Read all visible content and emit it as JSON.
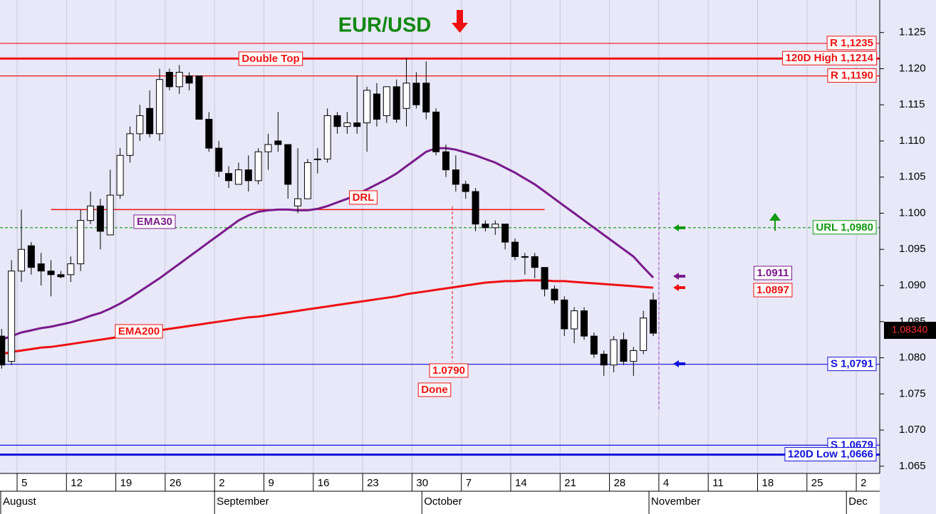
{
  "chart_data": {
    "type": "candlestick",
    "title": "EUR/USD",
    "ylim": [
      1.064,
      1.1295
    ],
    "yticks": [
      1.065,
      {
        "value": 1.07,
        "label": "1.070"
      },
      1.075,
      {
        "value": 1.08,
        "label": "1.080"
      },
      1.085,
      {
        "value": 1.09,
        "label": "1.090"
      },
      1.095,
      {
        "value": 1.1,
        "label": "1.100"
      },
      1.105,
      {
        "value": 1.11,
        "label": "1.110"
      },
      1.115,
      {
        "value": 1.12,
        "label": "1.120"
      },
      1.125
    ],
    "categories": [
      null,
      null,
      "5",
      null,
      null,
      null,
      null,
      "12",
      null,
      null,
      null,
      null,
      "19",
      null,
      null,
      null,
      null,
      "26",
      null,
      null,
      null,
      null,
      "2",
      null,
      null,
      null,
      null,
      "9",
      null,
      null,
      null,
      null,
      "16",
      null,
      null,
      null,
      null,
      "23",
      null,
      null,
      null,
      null,
      "30",
      null,
      null,
      null,
      null,
      "7",
      null,
      null,
      null,
      null,
      "14",
      null,
      null,
      null,
      null,
      "21",
      null,
      null,
      null,
      null,
      "28",
      null,
      null,
      null,
      null,
      "4",
      null,
      null,
      null,
      null,
      "11",
      null,
      null,
      null,
      null,
      "18",
      null,
      null,
      null,
      null,
      "25",
      null,
      null,
      null,
      null,
      "2",
      null
    ],
    "months": [
      "August",
      null,
      null,
      null,
      null,
      null,
      null,
      null,
      null,
      null,
      null,
      null,
      null,
      null,
      null,
      null,
      null,
      null,
      null,
      null,
      null,
      null,
      "September",
      null,
      null,
      null,
      null,
      null,
      null,
      null,
      null,
      null,
      null,
      null,
      null,
      null,
      null,
      null,
      null,
      null,
      null,
      null,
      null,
      "October",
      null,
      null,
      null,
      null,
      null,
      null,
      null,
      null,
      null,
      null,
      null,
      null,
      null,
      null,
      null,
      null,
      null,
      null,
      null,
      null,
      null,
      null,
      "November",
      null,
      null,
      null,
      null,
      null,
      null,
      null,
      null,
      null,
      null,
      null,
      null,
      null,
      null,
      null,
      null,
      null,
      null,
      null,
      "Dec",
      null
    ],
    "open": [
      1.083,
      1.0795,
      1.092,
      1.0955,
      1.093,
      1.092,
      1.0915,
      1.0915,
      1.093,
      1.099,
      1.101,
      1.097,
      1.1025,
      1.108,
      1.111,
      1.1145,
      1.111,
      1.1195,
      1.1175,
      1.119,
      1.119,
      1.113,
      1.109,
      1.1055,
      1.104,
      1.106,
      1.1045,
      1.1085,
      1.11,
      1.1095,
      1.101,
      1.102,
      1.1075,
      1.1075,
      1.1135,
      1.112,
      1.1125,
      1.1125,
      1.1165,
      1.1135,
      1.1175,
      1.1145,
      1.118,
      1.118,
      1.114,
      1.1085,
      1.106,
      1.104,
      1.103,
      1.0985,
      1.098,
      1.0985,
      1.096,
      1.094,
      1.094,
      1.0925,
      1.0895,
      1.088,
      1.084,
      1.0865,
      1.083,
      1.0805,
      1.079,
      1.0825,
      1.0795,
      1.081,
      1.088,
      null,
      null,
      null,
      null,
      null,
      null,
      null,
      null,
      null,
      null,
      null,
      null,
      null,
      null,
      null,
      null,
      null,
      null,
      null,
      null,
      null,
      null
    ],
    "high": [
      1.084,
      1.0935,
      1.1005,
      1.096,
      1.0945,
      1.0935,
      1.092,
      1.094,
      1.1005,
      1.103,
      1.102,
      1.106,
      1.109,
      1.112,
      1.115,
      1.117,
      1.12,
      1.12,
      1.1205,
      1.1195,
      1.119,
      1.114,
      1.11,
      1.1065,
      1.107,
      1.108,
      1.109,
      1.111,
      1.114,
      1.1095,
      1.109,
      1.1075,
      1.109,
      1.1145,
      1.114,
      1.114,
      1.119,
      1.1175,
      1.118,
      1.1175,
      1.1185,
      1.1215,
      1.1195,
      1.121,
      1.1145,
      1.1095,
      1.108,
      1.1045,
      1.1035,
      1.099,
      1.099,
      1.0985,
      1.0965,
      1.0945,
      1.0945,
      1.0925,
      1.09,
      1.0885,
      1.087,
      1.087,
      1.0835,
      1.081,
      1.083,
      1.0835,
      1.0815,
      1.0865,
      1.089,
      null,
      null,
      null,
      null,
      null,
      null,
      null,
      null,
      null,
      null,
      null,
      null,
      null,
      null,
      null,
      null,
      null,
      null,
      null,
      null,
      null,
      null
    ],
    "low": [
      1.0785,
      1.079,
      1.0905,
      1.0915,
      1.09,
      1.0885,
      1.091,
      1.0905,
      1.092,
      1.0985,
      1.095,
      1.097,
      1.102,
      1.107,
      1.11,
      1.1105,
      1.11,
      1.117,
      1.1165,
      1.117,
      1.113,
      1.1085,
      1.105,
      1.1035,
      1.104,
      1.103,
      1.104,
      1.106,
      1.1085,
      1.102,
      1.1,
      1.102,
      1.1055,
      1.107,
      1.111,
      1.111,
      1.111,
      1.1085,
      1.112,
      1.1125,
      1.1125,
      1.112,
      1.1145,
      1.113,
      1.108,
      1.105,
      1.103,
      1.102,
      1.0975,
      1.0975,
      1.097,
      1.095,
      1.0935,
      1.0915,
      1.091,
      1.0885,
      1.0875,
      1.083,
      1.082,
      1.0825,
      1.08,
      1.0775,
      1.078,
      1.079,
      1.0775,
      1.0805,
      1.083,
      null,
      null,
      null,
      null,
      null,
      null,
      null,
      null,
      null,
      null,
      null,
      null,
      null,
      null,
      null,
      null,
      null,
      null,
      null,
      null,
      null,
      null
    ],
    "close": [
      1.079,
      1.092,
      1.095,
      1.0925,
      1.092,
      1.0915,
      1.0912,
      1.093,
      1.099,
      1.101,
      1.0975,
      1.1025,
      1.108,
      1.111,
      1.1135,
      1.111,
      1.1185,
      1.1175,
      1.1195,
      1.118,
      1.113,
      1.109,
      1.1058,
      1.1045,
      1.106,
      1.1045,
      1.1085,
      1.1095,
      1.1095,
      1.104,
      1.102,
      1.107,
      1.1075,
      1.1135,
      1.112,
      1.1125,
      1.112,
      1.117,
      1.113,
      1.1175,
      1.113,
      1.118,
      1.115,
      1.114,
      1.1085,
      1.106,
      1.104,
      1.103,
      1.0985,
      1.098,
      1.0985,
      1.096,
      1.094,
      1.094,
      1.0925,
      1.0895,
      1.088,
      1.084,
      1.0865,
      1.083,
      1.0805,
      1.079,
      1.0825,
      1.0795,
      1.081,
      1.0855,
      1.0834,
      null,
      null,
      null,
      null,
      null,
      null,
      null,
      null,
      null,
      null,
      null,
      null,
      null,
      null,
      null,
      null,
      null,
      null,
      null,
      null,
      null,
      null
    ],
    "series": [
      {
        "name": "EMA200",
        "color": "#ee1111",
        "values": [
          1.0805,
          1.0808,
          1.081,
          1.0812,
          1.0814,
          1.0815,
          1.0817,
          1.0819,
          1.0821,
          1.0823,
          1.0825,
          1.0827,
          1.0829,
          1.0832,
          1.0834,
          1.0836,
          1.0838,
          1.084,
          1.0842,
          1.0844,
          1.0846,
          1.0848,
          1.085,
          1.0852,
          1.0854,
          1.0856,
          1.0857,
          1.0859,
          1.0861,
          1.0863,
          1.0865,
          1.0867,
          1.0869,
          1.0871,
          1.0873,
          1.0875,
          1.0877,
          1.0879,
          1.0881,
          1.0883,
          1.0885,
          1.0888,
          1.089,
          1.0892,
          1.0894,
          1.0896,
          1.0898,
          1.09,
          1.0902,
          1.0904,
          1.0905,
          1.0906,
          1.0906,
          1.0907,
          1.0907,
          1.0907,
          1.0906,
          1.0906,
          1.0905,
          1.0904,
          1.0903,
          1.0902,
          1.0901,
          1.09,
          1.0899,
          1.0898,
          1.0897,
          null,
          null,
          null,
          null,
          null,
          null,
          null,
          null,
          null,
          null,
          null,
          null,
          null,
          null,
          null,
          null,
          null,
          null,
          null,
          null,
          null,
          null
        ]
      },
      {
        "name": "EMA30",
        "color": "#7a1a8c",
        "values": [
          1.0825,
          1.083,
          1.0835,
          1.0838,
          1.0841,
          1.0843,
          1.0846,
          1.0849,
          1.0853,
          1.0858,
          1.0862,
          1.0868,
          1.0875,
          1.0883,
          1.0892,
          1.0901,
          1.091,
          1.092,
          1.093,
          1.094,
          1.095,
          1.096,
          1.097,
          1.098,
          1.099,
          1.0997,
          1.1002,
          1.1004,
          1.1005,
          1.1005,
          1.1004,
          1.1004,
          1.1006,
          1.101,
          1.1015,
          1.102,
          1.1026,
          1.1033,
          1.104,
          1.1047,
          1.1055,
          1.1065,
          1.1075,
          1.1085,
          1.109,
          1.109,
          1.1088,
          1.1084,
          1.108,
          1.1075,
          1.107,
          1.1063,
          1.1056,
          1.1048,
          1.104,
          1.103,
          1.102,
          1.101,
          1.1,
          1.099,
          1.098,
          1.097,
          1.096,
          1.095,
          1.094,
          1.0925,
          1.0911,
          null,
          null,
          null,
          null,
          null,
          null,
          null,
          null,
          null,
          null,
          null,
          null,
          null,
          null,
          null,
          null,
          null,
          null,
          null,
          null,
          null,
          null
        ]
      }
    ],
    "levels": [
      {
        "label": "R 1,1235",
        "value": 1.1235,
        "color": "#ee1111",
        "thick": false,
        "dashed": false
      },
      {
        "label": "120D High 1,1214",
        "value": 1.1214,
        "color": "#ee1111",
        "thick": true,
        "dashed": false
      },
      {
        "label": "R 1,1190",
        "value": 1.119,
        "color": "#ee1111",
        "thick": false,
        "dashed": false
      },
      {
        "label": "URL 1,0980",
        "value": 1.098,
        "color": "#119911",
        "thick": false,
        "dashed": true
      },
      {
        "label": "S 1,0791",
        "value": 1.0791,
        "color": "#1111dd",
        "thick": false,
        "dashed": false
      },
      {
        "label": "S 1,0679",
        "value": 1.0679,
        "color": "#1111dd",
        "thick": false,
        "dashed": false
      },
      {
        "label": "120D Low 1,0666",
        "value": 1.0666,
        "color": "#1111dd",
        "thick": true,
        "dashed": false
      }
    ],
    "drl": {
      "label": "DRL",
      "value": 1.1005
    },
    "annotations": [
      "Double Top",
      "1.0790",
      "Done",
      "1.0911",
      "1.0897"
    ],
    "last_price": "1.08340"
  }
}
